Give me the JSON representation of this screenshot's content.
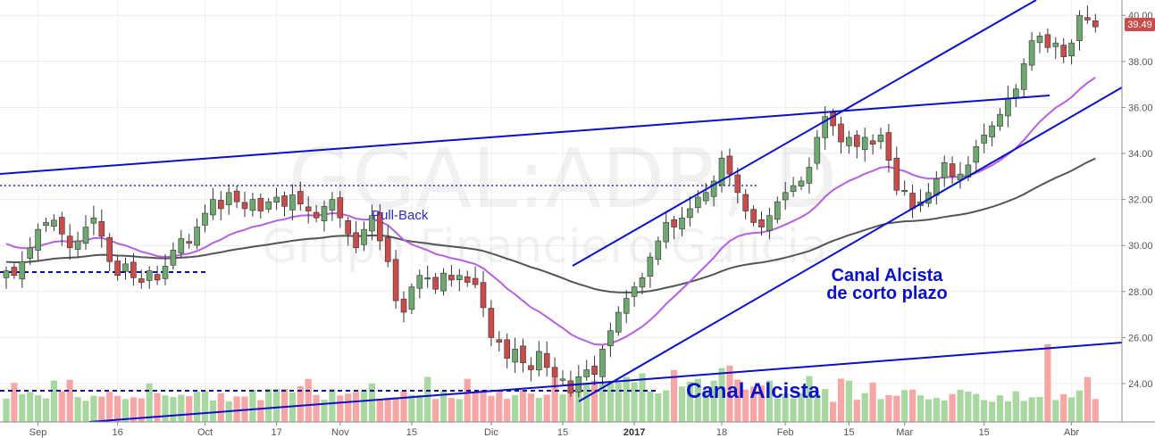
{
  "chart_data": {
    "type": "candlestick",
    "symbol": "GGAL:ADR, D",
    "company": "Grupo Financiero Galicia",
    "current_price": "39.49",
    "ylim": [
      22.5,
      40.4
    ],
    "y_ticks": [
      "24.00",
      "26.00",
      "28.00",
      "30.00",
      "32.00",
      "34.00",
      "36.00",
      "38.00",
      "40.00"
    ],
    "x_ticks": [
      {
        "label": "Sep",
        "bar": 4
      },
      {
        "label": "16",
        "bar": 14
      },
      {
        "label": "Oct",
        "bar": 25
      },
      {
        "label": "17",
        "bar": 34
      },
      {
        "label": "Nov",
        "bar": 42
      },
      {
        "label": "15",
        "bar": 51
      },
      {
        "label": "Dic",
        "bar": 61
      },
      {
        "label": "15",
        "bar": 70
      },
      {
        "label": "2017",
        "bar": 79,
        "bold": true
      },
      {
        "label": "18",
        "bar": 90
      },
      {
        "label": "Feb",
        "bar": 98
      },
      {
        "label": "15",
        "bar": 106
      },
      {
        "label": "Mar",
        "bar": 113
      },
      {
        "label": "15",
        "bar": 123
      },
      {
        "label": "Abr",
        "bar": 134
      }
    ],
    "closes": [
      28.9,
      28.7,
      29.3,
      29.9,
      30.7,
      31.0,
      31.1,
      30.5,
      29.9,
      30.2,
      30.8,
      31.2,
      30.4,
      29.3,
      28.7,
      29.2,
      28.6,
      28.4,
      28.9,
      28.5,
      29.1,
      29.8,
      30.3,
      30.1,
      30.8,
      31.4,
      32.0,
      31.6,
      32.3,
      31.9,
      31.6,
      32.0,
      31.5,
      31.9,
      32.1,
      31.7,
      32.2,
      31.8,
      31.5,
      31.2,
      31.7,
      32.0,
      31.2,
      30.5,
      29.9,
      30.7,
      31.3,
      30.2,
      29.3,
      27.6,
      27.1,
      28.2,
      28.7,
      28.6,
      28.1,
      28.8,
      28.5,
      28.7,
      28.4,
      28.3,
      27.3,
      26.0,
      25.8,
      25.1,
      25.5,
      24.9,
      24.6,
      25.4,
      24.7,
      24.3,
      24.2,
      23.6,
      24.3,
      24.6,
      24.4,
      25.5,
      26.3,
      27.1,
      27.7,
      28.2,
      28.6,
      29.5,
      30.2,
      31.0,
      30.8,
      31.2,
      31.6,
      32.1,
      32.3,
      32.8,
      33.8,
      33.1,
      32.3,
      31.5,
      31.0,
      30.8,
      31.3,
      31.9,
      32.3,
      32.6,
      32.8,
      33.4,
      34.7,
      35.6,
      35.2,
      34.5,
      34.7,
      34.3,
      34.7,
      34.4,
      34.8,
      33.7,
      32.4,
      32.4,
      31.6,
      31.9,
      32.3,
      32.9,
      33.6,
      33.0,
      33.1,
      33.5,
      34.3,
      34.8,
      35.2,
      35.7,
      36.4,
      36.8,
      37.9,
      38.9,
      39.1,
      38.6,
      38.8,
      38.2,
      38.8,
      40.0,
      39.8,
      39.5
    ],
    "up_color": "#6fa86f",
    "down_color": "#c94c4c",
    "volume_up_color": "#a8d7a0",
    "volume_down_color": "#f7a6a6",
    "ma_short_color": "#b660e0",
    "ma_long_color": "#555555",
    "line_color": "#0a10c8",
    "annotations": {
      "pull_back": "Pull-Back",
      "short_channel_line1": "Canal Alcista",
      "short_channel_line2": "de corto plazo",
      "channel": "Canal Alcista"
    }
  }
}
